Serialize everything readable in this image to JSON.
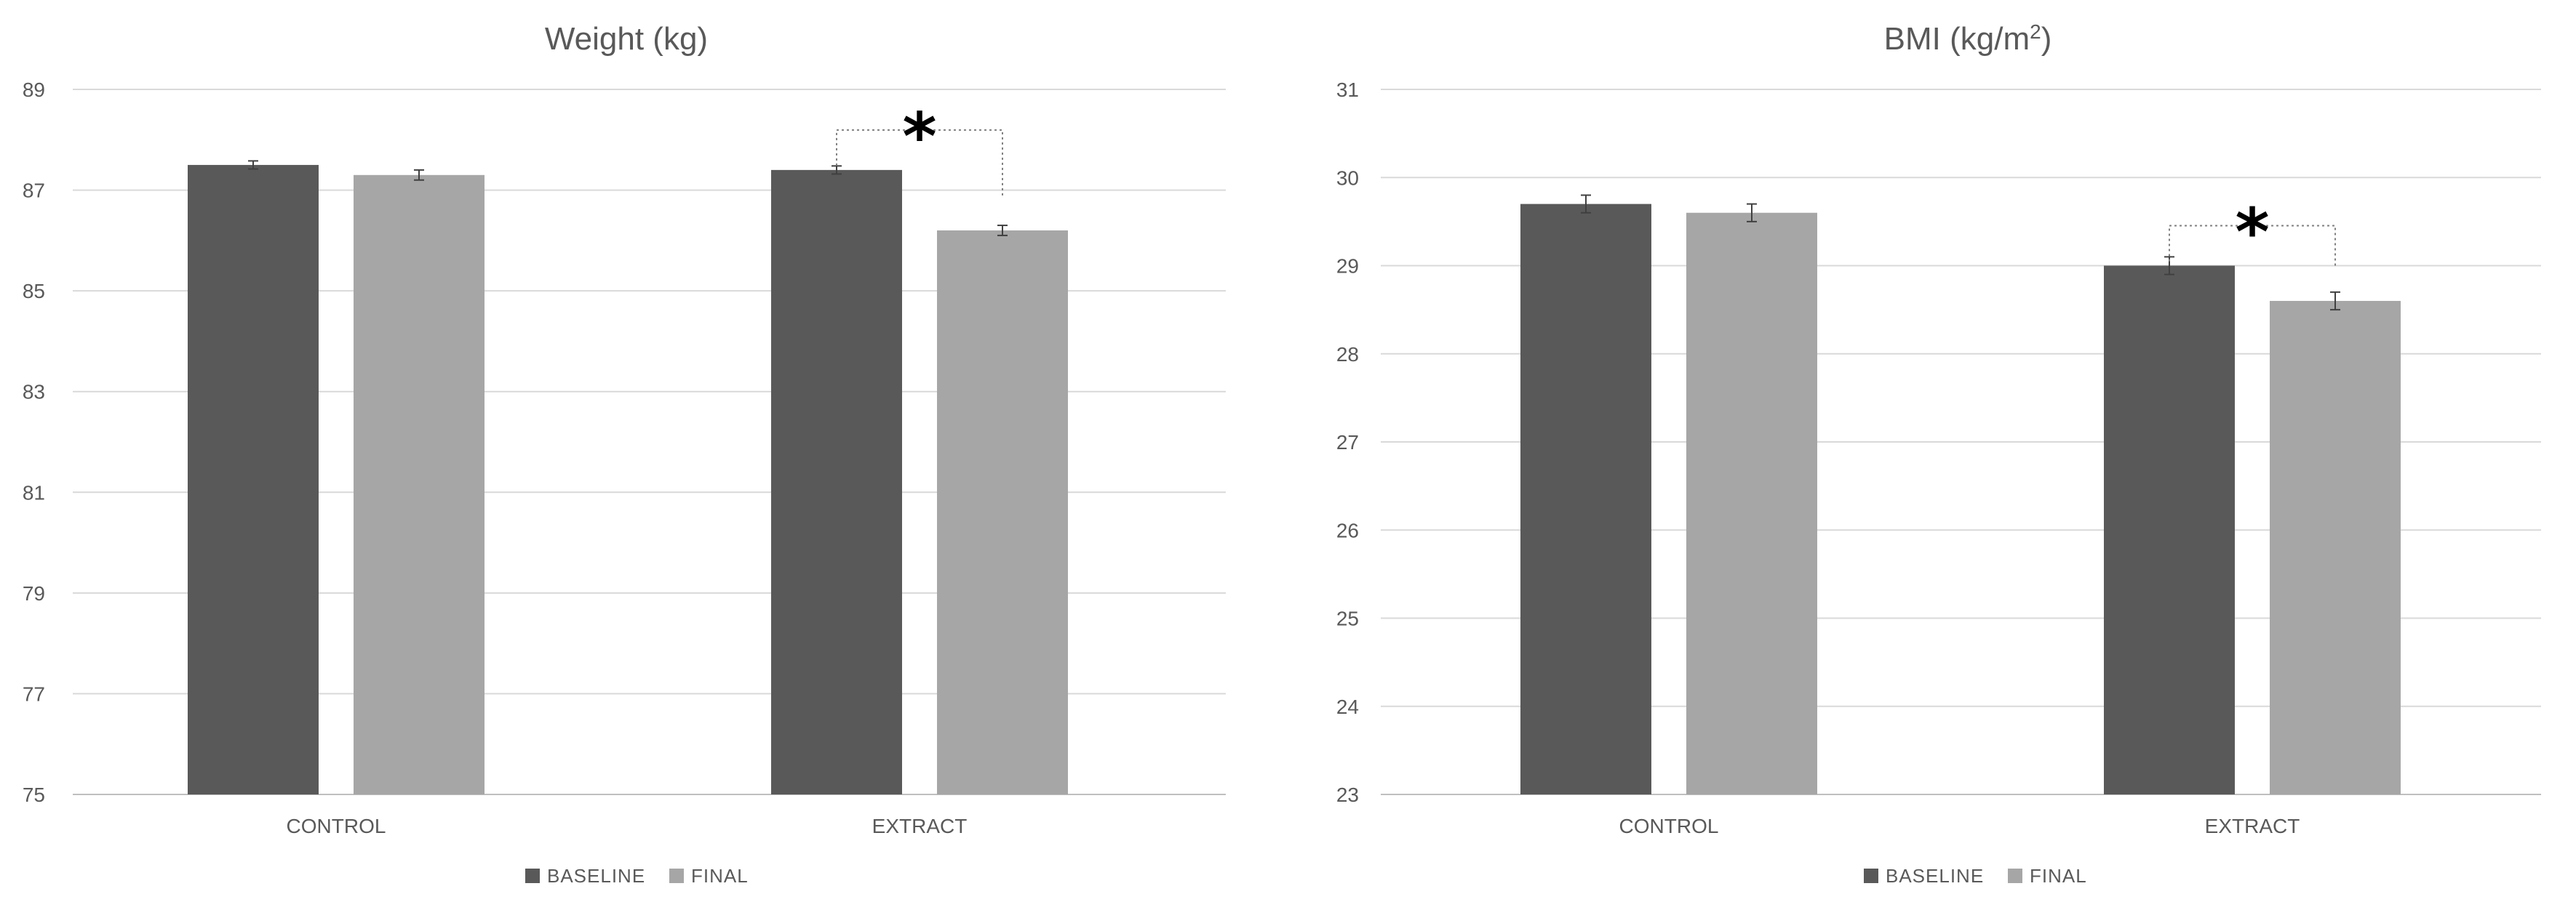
{
  "chart_data": [
    {
      "type": "bar",
      "title": "Weight (kg)",
      "xlabel": "",
      "ylabel": "",
      "ylim": [
        75,
        89
      ],
      "yticks": [
        75,
        77,
        79,
        81,
        83,
        85,
        87,
        89
      ],
      "categories": [
        "CONTROL",
        "EXTRACT"
      ],
      "series": [
        {
          "name": "BASELINE",
          "values": [
            87.5,
            87.4
          ],
          "errors": [
            0.08,
            0.08
          ],
          "color": "#595959"
        },
        {
          "name": "FINAL",
          "values": [
            87.3,
            86.2
          ],
          "errors": [
            0.1,
            0.1
          ],
          "color": "#a6a6a6"
        }
      ],
      "legend": "bottom",
      "grid": true,
      "annotations": [
        {
          "text": "*",
          "category": "EXTRACT",
          "between": [
            "BASELINE",
            "FINAL"
          ]
        }
      ]
    },
    {
      "type": "bar",
      "title": "BMI (kg/m",
      "title_sup": "2",
      "title_end": ")",
      "xlabel": "",
      "ylabel": "",
      "ylim": [
        23,
        31
      ],
      "yticks": [
        23,
        24,
        25,
        26,
        27,
        28,
        29,
        30,
        31
      ],
      "categories": [
        "CONTROL",
        "EXTRACT"
      ],
      "series": [
        {
          "name": "BASELINE",
          "values": [
            29.7,
            29.0
          ],
          "errors": [
            0.1,
            0.1
          ],
          "color": "#595959"
        },
        {
          "name": "FINAL",
          "values": [
            29.6,
            28.6
          ],
          "errors": [
            0.1,
            0.1
          ],
          "color": "#a6a6a6"
        }
      ],
      "legend": "bottom",
      "grid": true,
      "annotations": [
        {
          "text": "*",
          "category": "EXTRACT",
          "between": [
            "BASELINE",
            "FINAL"
          ]
        }
      ]
    }
  ]
}
